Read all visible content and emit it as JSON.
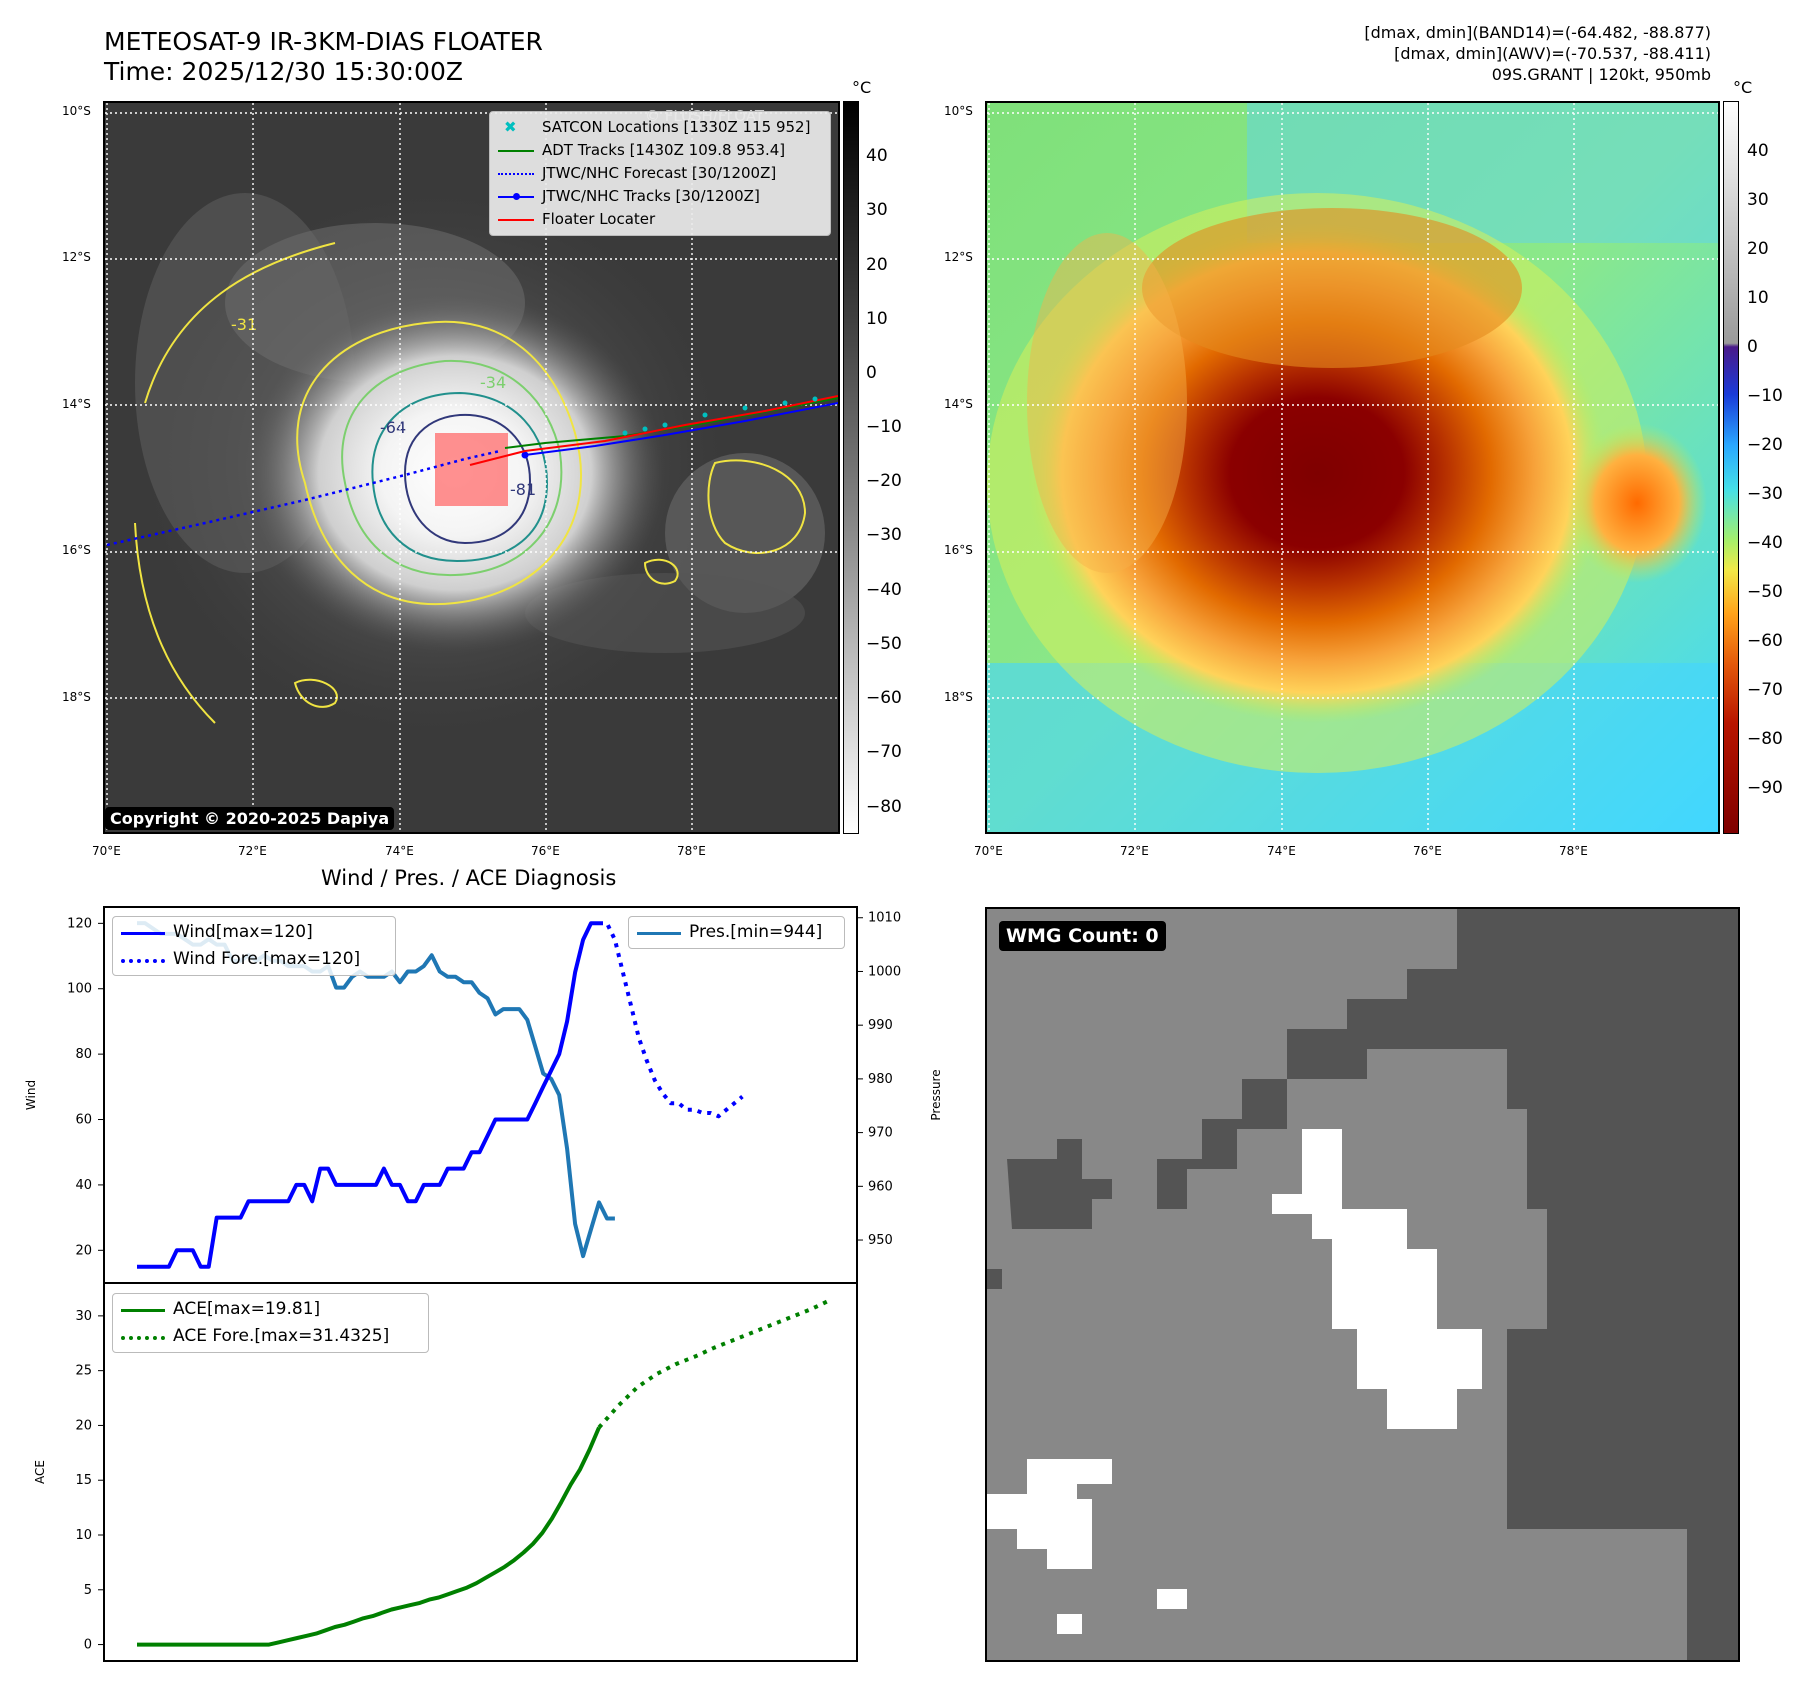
{
  "header": {
    "title_line1": "METEOSAT-9 IR-3KM-DIAS FLOATER",
    "title_line2": "Time: 2025/12/30 15:30:00Z",
    "info_line1": "[dmax, dmin](BAND14)=(-64.482, -88.877)",
    "info_line2": "[dmax, dmin](AWV)=(-70.537, -88.411)",
    "info_line3": "09S.GRANT | 120kt, 950mb"
  },
  "ir_panel": {
    "lat_ticks": [
      "10°S",
      "12°S",
      "14°S",
      "16°S",
      "18°S"
    ],
    "lon_ticks": [
      "70°E",
      "72°E",
      "74°E",
      "76°E",
      "78°E"
    ],
    "copyright": "Copyright © 2020-2025 Dapiya",
    "watermark": "© FLUSH/FLOAT",
    "contour_labels": [
      "-31",
      "-34",
      "-64",
      "-81"
    ],
    "legend": [
      {
        "label": "SATCON Locations [1330Z 115 952]",
        "color": "#00bfbf"
      },
      {
        "label": "ADT Tracks [1430Z 109.8 953.4]",
        "color": "#008000"
      },
      {
        "label": "JTWC/NHC Forecast [30/1200Z]",
        "color": "#0000ff"
      },
      {
        "label": "JTWC/NHC Tracks [30/1200Z]",
        "color": "#0000ff"
      },
      {
        "label": "Floater Locater",
        "color": "#ff0000"
      }
    ],
    "colorbar_unit": "°C",
    "colorbar_ticks": [
      "40",
      "30",
      "20",
      "10",
      "0",
      "−10",
      "−20",
      "−30",
      "−40",
      "−50",
      "−60",
      "−70",
      "−80"
    ]
  },
  "awv_panel": {
    "lat_ticks": [
      "10°S",
      "12°S",
      "14°S",
      "16°S",
      "18°S"
    ],
    "lon_ticks": [
      "70°E",
      "72°E",
      "74°E",
      "76°E",
      "78°E"
    ],
    "colorbar_unit": "°C",
    "colorbar_ticks": [
      "40",
      "30",
      "20",
      "10",
      "0",
      "−10",
      "−20",
      "−30",
      "−40",
      "−50",
      "−60",
      "−70",
      "−80",
      "−90"
    ]
  },
  "wmg_panel": {
    "badge": "WMG Count: 0"
  },
  "chart_data": [
    {
      "type": "line",
      "title": "Wind / Pres. / ACE Diagnosis",
      "ylabel": "Wind",
      "ylabel_right": "Pressure",
      "ylim": [
        10,
        125
      ],
      "ylim_right": [
        942,
        1012
      ],
      "yticks": [
        20,
        40,
        60,
        80,
        100,
        120
      ],
      "yticks_right": [
        950,
        960,
        970,
        980,
        990,
        1000,
        1010
      ],
      "series": [
        {
          "name": "Wind[max=120]",
          "axis": "left",
          "style": "solid",
          "color": "#0000ff",
          "values": [
            15,
            15,
            15,
            15,
            15,
            20,
            20,
            20,
            15,
            15,
            30,
            30,
            30,
            30,
            35,
            35,
            35,
            35,
            35,
            35,
            40,
            40,
            35,
            45,
            45,
            40,
            40,
            40,
            40,
            40,
            40,
            45,
            40,
            40,
            35,
            35,
            40,
            40,
            40,
            45,
            45,
            45,
            50,
            50,
            55,
            60,
            60,
            60,
            60,
            60,
            65,
            70,
            75,
            80,
            90,
            105,
            115,
            120,
            120
          ]
        },
        {
          "name": "Wind Fore.[max=120]",
          "axis": "left",
          "style": "dotted",
          "color": "#0000ff",
          "values": [
            120,
            120,
            115,
            105,
            95,
            85,
            78,
            72,
            68,
            65,
            65,
            63,
            63,
            62,
            62,
            61,
            63,
            65,
            67
          ]
        },
        {
          "name": "Pres.[min=944]",
          "axis": "right",
          "style": "solid",
          "color": "#1f77b4",
          "values": [
            1009,
            1009,
            1008,
            1007,
            1007,
            1007,
            1006,
            1005,
            1005,
            1006,
            1005,
            1005,
            1002,
            1002,
            1003,
            1002,
            1003,
            1002,
            1002,
            1001,
            1001,
            1001,
            1000,
            1000,
            1001,
            997,
            997,
            999,
            1000,
            999,
            999,
            999,
            1000,
            998,
            1000,
            1000,
            1001,
            1003,
            1000,
            999,
            999,
            998,
            998,
            996,
            995,
            992,
            993,
            993,
            993,
            991,
            986,
            981,
            980,
            977,
            967,
            953,
            947,
            952,
            957,
            954,
            954
          ]
        },
        {
          "name": "ACE[max=19.81]",
          "axis": "ace",
          "style": "solid",
          "color": "#008000",
          "values": [
            0,
            0,
            0,
            0,
            0,
            0,
            0,
            0,
            0,
            0,
            0,
            0,
            0,
            0,
            0,
            0.2,
            0.4,
            0.6,
            0.8,
            1.0,
            1.3,
            1.6,
            1.8,
            2.1,
            2.4,
            2.6,
            2.9,
            3.2,
            3.4,
            3.6,
            3.8,
            4.1,
            4.3,
            4.6,
            4.9,
            5.2,
            5.6,
            6.1,
            6.6,
            7.1,
            7.7,
            8.4,
            9.2,
            10.2,
            11.5,
            13.0,
            14.6,
            16.0,
            17.8,
            19.81
          ]
        },
        {
          "name": "ACE Fore.[max=31.4325]",
          "axis": "ace",
          "style": "dotted",
          "color": "#008000",
          "values": [
            19.81,
            21.8,
            23.5,
            24.7,
            25.6,
            26.3,
            27.1,
            27.8,
            28.5,
            29.2,
            29.9,
            30.6,
            31.4325
          ]
        }
      ],
      "ace_ylabel": "ACE",
      "ace_ylim": [
        -1.5,
        33
      ],
      "ace_yticks": [
        0,
        5,
        10,
        15,
        20,
        25,
        30
      ]
    }
  ]
}
